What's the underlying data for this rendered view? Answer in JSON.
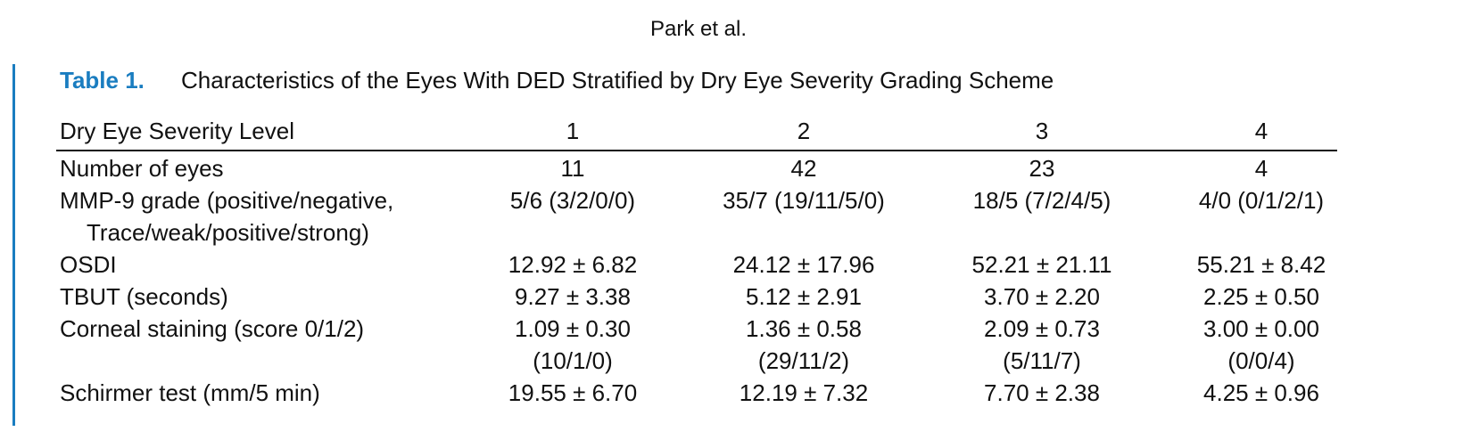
{
  "header": {
    "running_head": "Park et al."
  },
  "table": {
    "label": "Table 1.",
    "title": "Characteristics of the Eyes With DED Stratified by Dry Eye Severity Grading Scheme",
    "columns": [
      "Dry Eye Severity Level",
      "1",
      "2",
      "3",
      "4"
    ],
    "rows": [
      {
        "label": [
          "Number of eyes"
        ],
        "cells": [
          [
            "11"
          ],
          [
            "42"
          ],
          [
            "23"
          ],
          [
            "4"
          ]
        ]
      },
      {
        "label": [
          "MMP-9 grade (positive/negative,",
          "Trace/weak/positive/strong)"
        ],
        "cells": [
          [
            "5/6 (3/2/0/0)"
          ],
          [
            "35/7 (19/11/5/0)"
          ],
          [
            "18/5 (7/2/4/5)"
          ],
          [
            "4/0 (0/1/2/1)"
          ]
        ]
      },
      {
        "label": [
          "OSDI"
        ],
        "cells": [
          [
            "12.92 ± 6.82"
          ],
          [
            "24.12 ± 17.96"
          ],
          [
            "52.21 ± 21.11"
          ],
          [
            "55.21 ± 8.42"
          ]
        ]
      },
      {
        "label": [
          "TBUT (seconds)"
        ],
        "cells": [
          [
            "9.27 ± 3.38"
          ],
          [
            "5.12 ± 2.91"
          ],
          [
            "3.70 ± 2.20"
          ],
          [
            "2.25 ± 0.50"
          ]
        ]
      },
      {
        "label": [
          "Corneal staining (score 0/1/2)"
        ],
        "cells": [
          [
            "1.09 ± 0.30",
            "(10/1/0)"
          ],
          [
            "1.36 ± 0.58",
            "(29/11/2)"
          ],
          [
            "2.09 ± 0.73",
            "(5/11/7)"
          ],
          [
            "3.00 ± 0.00",
            "(0/0/4)"
          ]
        ]
      },
      {
        "label": [
          "Schirmer test (mm/5 min)"
        ],
        "cells": [
          [
            "19.55 ± 6.70"
          ],
          [
            "12.19 ± 7.32"
          ],
          [
            "7.70 ± 2.38"
          ],
          [
            "4.25 ± 0.96"
          ]
        ]
      }
    ]
  }
}
